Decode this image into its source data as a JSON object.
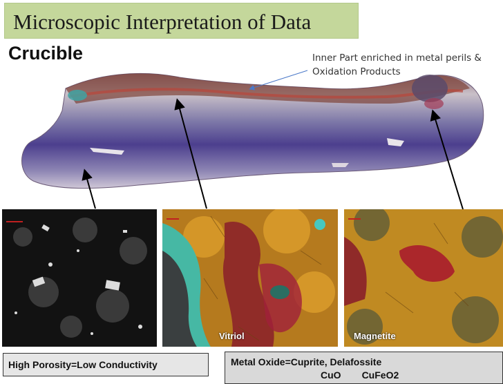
{
  "title": "Microscopic Interpretation of Data",
  "heading": "Crucible",
  "annotation": {
    "line1": "Inner Part enriched in metal perils &",
    "line2": "Oxidation Products"
  },
  "micrographs": [
    {
      "label": ""
    },
    {
      "label": "Vitriol"
    },
    {
      "label": "Magnetite"
    }
  ],
  "bottom_left": {
    "text": "High Porosity=Low Conductivity"
  },
  "bottom_right": {
    "line1": "Metal Oxide=Cuprite, Delafossite",
    "formula1": "CuO",
    "formula2": "CuFeO2"
  }
}
